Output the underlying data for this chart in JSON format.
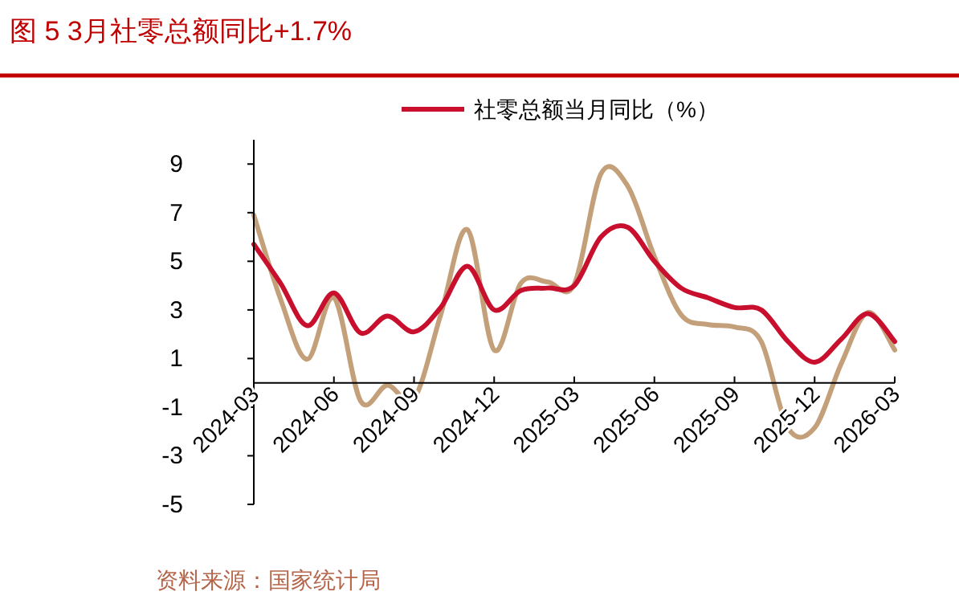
{
  "chart_data": {
    "type": "line",
    "title": "图 5 3月社零总额同比+1.7%",
    "x": [
      "2024-03",
      "2024-04",
      "2024-05",
      "2024-06",
      "2024-07",
      "2024-08",
      "2024-09",
      "2024-10",
      "2024-11",
      "2024-12",
      "2025-01",
      "2025-02",
      "2025-03",
      "2025-04",
      "2025-05",
      "2025-06",
      "2025-07",
      "2025-08",
      "2025-09",
      "2025-10",
      "2025-11",
      "2025-12",
      "2026-01",
      "2026-02",
      "2026-03"
    ],
    "series": [
      {
        "name": "社零总额当月同比（%）",
        "color": "#c8102e",
        "values": [
          5.7,
          4.1,
          2.35,
          3.7,
          2.05,
          2.75,
          2.1,
          3.1,
          4.8,
          3.0,
          3.8,
          3.9,
          4.0,
          6.0,
          6.4,
          5.0,
          3.9,
          3.5,
          3.1,
          3.0,
          1.7,
          0.85,
          1.8,
          2.85,
          1.7
        ]
      },
      {
        "color": "#c4a07a",
        "values": [
          6.9,
          3.45,
          0.97,
          3.5,
          -0.75,
          -0.1,
          -0.65,
          2.8,
          6.3,
          1.35,
          4.1,
          4.15,
          4.05,
          8.6,
          8.1,
          5.2,
          2.8,
          2.4,
          2.3,
          1.7,
          -1.85,
          -1.85,
          0.8,
          2.9,
          1.35
        ]
      }
    ],
    "xlim": [
      "2024-03",
      "2026-03"
    ],
    "xticks": [
      "2024-03",
      "2024-06",
      "2024-09",
      "2024-12",
      "2025-03",
      "2025-06",
      "2025-09",
      "2025-12",
      "2026-03"
    ],
    "ylim": [
      -5,
      10
    ],
    "yticks": [
      -5,
      -3,
      -1,
      1,
      3,
      5,
      7,
      9
    ],
    "legend": "top",
    "annotations": [
      "资料来源：国家统计局"
    ]
  }
}
